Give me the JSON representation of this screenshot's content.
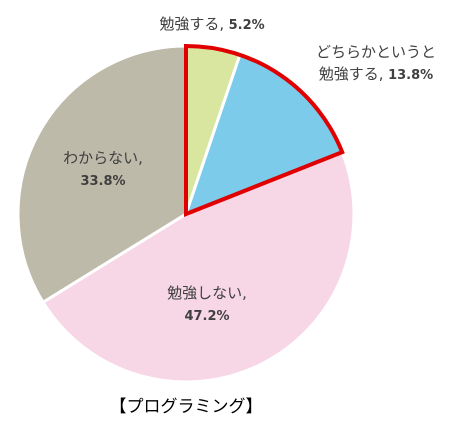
{
  "chart_data": {
    "type": "pie",
    "title": "【プログラミング】",
    "slices": [
      {
        "label_lines": [
          "勉強する,"
        ],
        "value": 5.2,
        "value_label": "5.2%",
        "color": "#D9E6A0"
      },
      {
        "label_lines": [
          "どちらかというと",
          "勉強する,"
        ],
        "value": 13.8,
        "value_label": "13.8%",
        "color": "#7CCBEA"
      },
      {
        "label_lines": [
          "勉強しない,"
        ],
        "value": 47.2,
        "value_label": "47.2%",
        "color": "#F7D7E6"
      },
      {
        "label_lines": [
          "わからない,"
        ],
        "value": 33.8,
        "value_label": "33.8%",
        "color": "#BEBAA9"
      }
    ],
    "highlight_color": "#E00000",
    "slice_border_color": "#FFFFFF"
  }
}
